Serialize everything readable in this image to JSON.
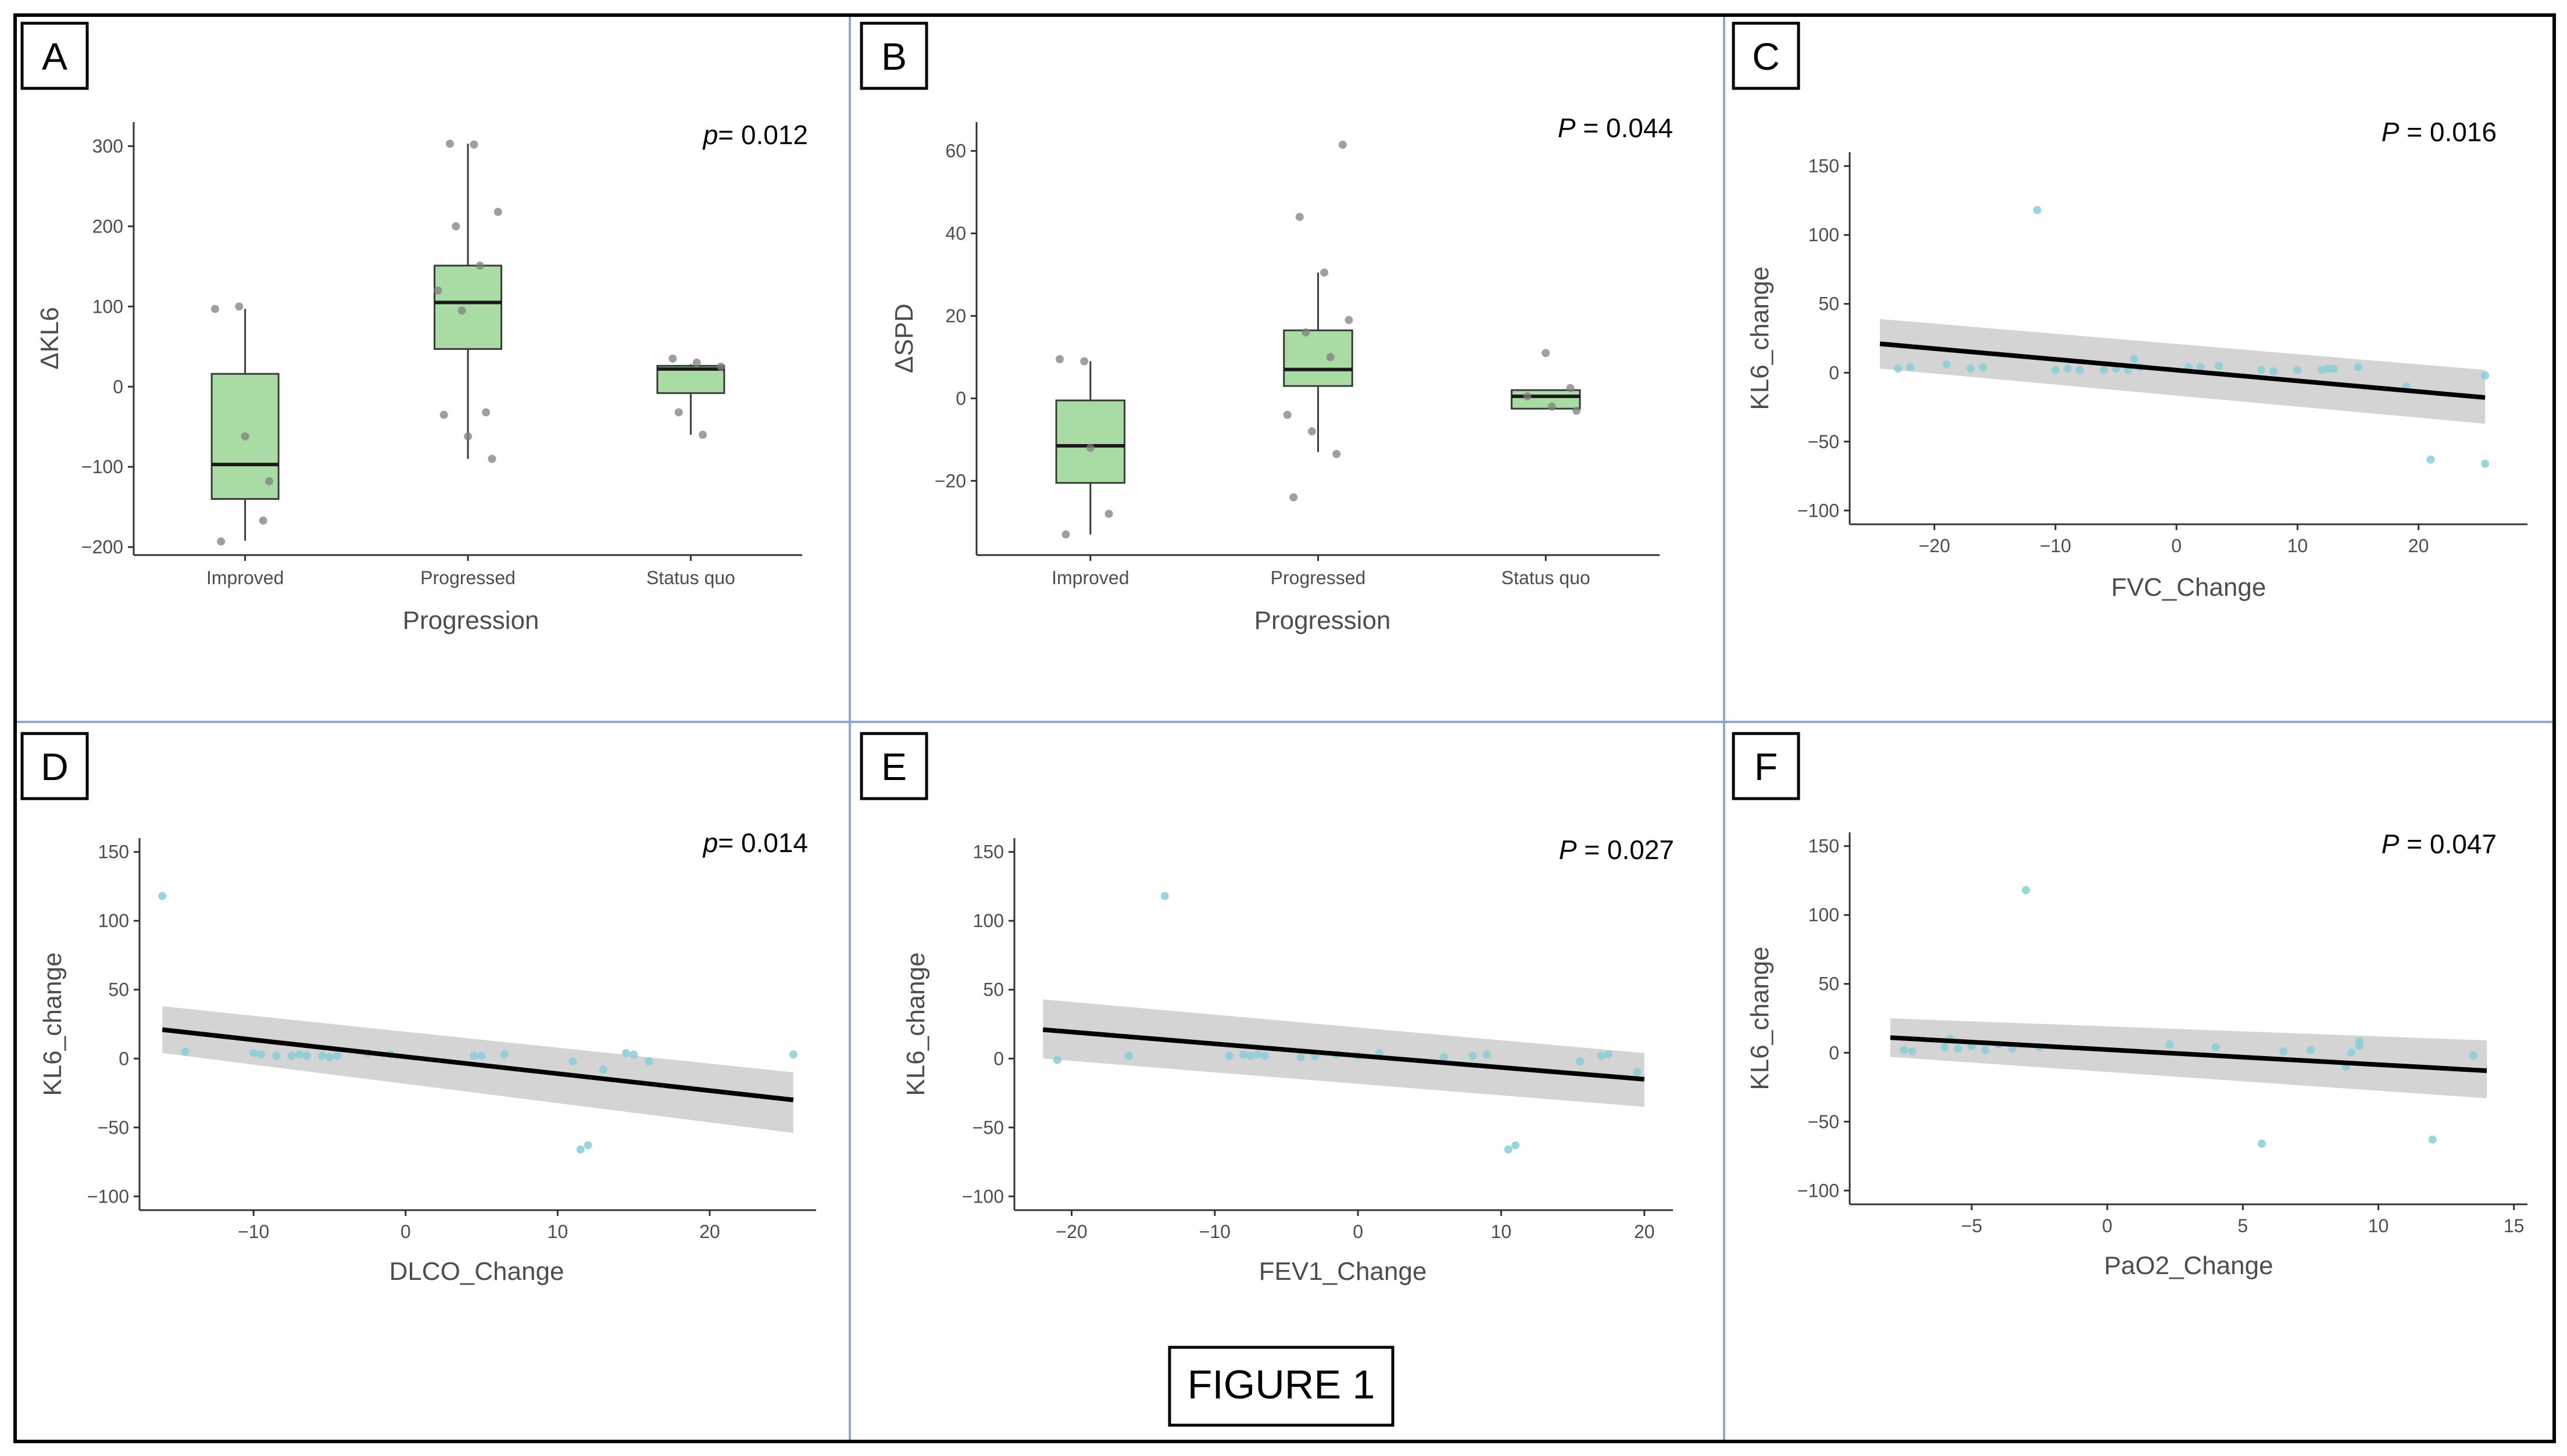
{
  "figure_caption": "FIGURE 1",
  "colors": {
    "box_fill": "#a9dba4",
    "box_stroke": "#3a3a3a",
    "jitter_point": "#7f7f7f",
    "scatter_point": "#88cdd6",
    "ribbon": "#cccccc",
    "fit_line": "#000000",
    "panel_divider": "#8ea6c8",
    "frame": "#000000"
  },
  "chart_data": [
    {
      "panel": "A",
      "type": "box",
      "pvalue_prefix": "p",
      "pvalue_rest": "= 0.012",
      "xlabel": "Progression",
      "ylabel": "ΔKL6",
      "categories": [
        "Improved",
        "Progressed",
        "Status quo"
      ],
      "ylim": [
        -210,
        330
      ],
      "yticks": [
        -200,
        -100,
        0,
        100,
        200,
        300
      ],
      "boxes": [
        {
          "category": "Improved",
          "whisker_low": -192,
          "q1": -140,
          "median": -97,
          "q3": 16,
          "whisker_high": 97
        },
        {
          "category": "Progressed",
          "whisker_low": -90,
          "q1": 47,
          "median": 105,
          "q3": 151,
          "whisker_high": 303
        },
        {
          "category": "Status quo",
          "whisker_low": -60,
          "q1": -8,
          "median": 22,
          "q3": 26,
          "whisker_high": 28
        }
      ],
      "points": [
        {
          "group": 0,
          "y": 97
        },
        {
          "group": 0,
          "y": 100
        },
        {
          "group": 0,
          "y": -167
        },
        {
          "group": 0,
          "y": -193
        },
        {
          "group": 0,
          "y": -62
        },
        {
          "group": 0,
          "y": -118
        },
        {
          "group": 1,
          "y": 303
        },
        {
          "group": 1,
          "y": 302
        },
        {
          "group": 1,
          "y": 218
        },
        {
          "group": 1,
          "y": 200
        },
        {
          "group": 1,
          "y": 151
        },
        {
          "group": 1,
          "y": 120
        },
        {
          "group": 1,
          "y": 95
        },
        {
          "group": 1,
          "y": -32
        },
        {
          "group": 1,
          "y": -35
        },
        {
          "group": 1,
          "y": -62
        },
        {
          "group": 1,
          "y": -90
        },
        {
          "group": 2,
          "y": 35
        },
        {
          "group": 2,
          "y": 30
        },
        {
          "group": 2,
          "y": 25
        },
        {
          "group": 2,
          "y": -32
        },
        {
          "group": 2,
          "y": -60
        }
      ]
    },
    {
      "panel": "B",
      "type": "box",
      "pvalue_prefix": "P",
      "pvalue_rest": " = 0.044",
      "xlabel": "Progression",
      "ylabel": "ΔSPD",
      "categories": [
        "Improved",
        "Progressed",
        "Status quo"
      ],
      "ylim": [
        -38,
        67
      ],
      "yticks": [
        -20,
        0,
        20,
        40,
        60
      ],
      "boxes": [
        {
          "category": "Improved",
          "whisker_low": -33,
          "q1": -20.5,
          "median": -11.5,
          "q3": -0.5,
          "whisker_high": 9
        },
        {
          "category": "Progressed",
          "whisker_low": -13,
          "q1": 3,
          "median": 7,
          "q3": 16.5,
          "whisker_high": 30.5
        },
        {
          "category": "Status quo",
          "whisker_low": -2.5,
          "q1": -2.5,
          "median": 0.5,
          "q3": 2,
          "whisker_high": 2
        }
      ],
      "points": [
        {
          "group": 0,
          "y": 9.5
        },
        {
          "group": 0,
          "y": 9
        },
        {
          "group": 0,
          "y": -28
        },
        {
          "group": 0,
          "y": -33
        },
        {
          "group": 0,
          "y": -12
        },
        {
          "group": 1,
          "y": 61.5
        },
        {
          "group": 1,
          "y": 44
        },
        {
          "group": 1,
          "y": 30.5
        },
        {
          "group": 1,
          "y": 19
        },
        {
          "group": 1,
          "y": 16
        },
        {
          "group": 1,
          "y": 10
        },
        {
          "group": 1,
          "y": -4
        },
        {
          "group": 1,
          "y": -8
        },
        {
          "group": 1,
          "y": -13.5
        },
        {
          "group": 1,
          "y": -24
        },
        {
          "group": 2,
          "y": 11
        },
        {
          "group": 2,
          "y": 2.5
        },
        {
          "group": 2,
          "y": 0.5
        },
        {
          "group": 2,
          "y": -2
        },
        {
          "group": 2,
          "y": -3
        }
      ]
    },
    {
      "panel": "C",
      "type": "scatter",
      "pvalue_prefix": "P",
      "pvalue_rest": " = 0.016",
      "xlabel": "FVC_Change",
      "ylabel": "KL6_change",
      "xlim": [
        -27,
        29
      ],
      "ylim": [
        -110,
        160
      ],
      "xticks": [
        -20,
        -10,
        0,
        10,
        20
      ],
      "yticks": [
        -100,
        -50,
        0,
        50,
        100,
        150
      ],
      "fit": {
        "x": [
          -24.5,
          25.5
        ],
        "y": [
          21,
          -18
        ],
        "ci_lower": [
          3,
          -37
        ],
        "ci_upper": [
          39,
          2
        ]
      },
      "points": [
        [
          -23,
          3
        ],
        [
          -22,
          4
        ],
        [
          -19,
          6
        ],
        [
          -17,
          3
        ],
        [
          -16,
          4
        ],
        [
          -11.5,
          118
        ],
        [
          -10,
          2
        ],
        [
          -9,
          3
        ],
        [
          -8,
          2
        ],
        [
          -6,
          2
        ],
        [
          -5,
          3
        ],
        [
          -4,
          2
        ],
        [
          -3.5,
          10
        ],
        [
          -3,
          4
        ],
        [
          1,
          4
        ],
        [
          2,
          4
        ],
        [
          3.5,
          5
        ],
        [
          7,
          2
        ],
        [
          8,
          1
        ],
        [
          10,
          2
        ],
        [
          12,
          2
        ],
        [
          12.5,
          3
        ],
        [
          13,
          3
        ],
        [
          15,
          4
        ],
        [
          19,
          -10
        ],
        [
          21,
          -63
        ],
        [
          25.5,
          -66
        ],
        [
          25.5,
          -2
        ]
      ]
    },
    {
      "panel": "D",
      "type": "scatter",
      "pvalue_prefix": "p",
      "pvalue_rest": "= 0.014",
      "xlabel": "DLCO_Change",
      "ylabel": "KL6_change",
      "xlim": [
        -17.5,
        27
      ],
      "ylim": [
        -110,
        160
      ],
      "xticks": [
        -10,
        0,
        10,
        20
      ],
      "yticks": [
        -100,
        -50,
        0,
        50,
        100,
        150
      ],
      "fit": {
        "x": [
          -16,
          25.5
        ],
        "y": [
          21,
          -30
        ],
        "ci_lower": [
          4,
          -54
        ],
        "ci_upper": [
          38,
          -10
        ]
      },
      "points": [
        [
          -16,
          118
        ],
        [
          -14.5,
          5
        ],
        [
          -10,
          4
        ],
        [
          -9.5,
          3
        ],
        [
          -8.5,
          2
        ],
        [
          -7.5,
          2
        ],
        [
          -7,
          3
        ],
        [
          -6.5,
          2
        ],
        [
          -5.5,
          2
        ],
        [
          -5,
          1
        ],
        [
          -4.5,
          2
        ],
        [
          -2.5,
          4
        ],
        [
          -1,
          3
        ],
        [
          4.5,
          2
        ],
        [
          5,
          2
        ],
        [
          6.5,
          3
        ],
        [
          11,
          -2
        ],
        [
          11.5,
          -66
        ],
        [
          12,
          -63
        ],
        [
          13,
          -8
        ],
        [
          14.5,
          4
        ],
        [
          15,
          3
        ],
        [
          16,
          -2
        ],
        [
          25.5,
          3
        ]
      ]
    },
    {
      "panel": "E",
      "type": "scatter",
      "pvalue_prefix": "P",
      "pvalue_rest": " = 0.027",
      "xlabel": "FEV1_Change",
      "ylabel": "KL6_change",
      "xlim": [
        -24,
        22
      ],
      "ylim": [
        -110,
        160
      ],
      "xticks": [
        -20,
        -10,
        0,
        10,
        20
      ],
      "yticks": [
        -100,
        -50,
        0,
        50,
        100,
        150
      ],
      "fit": {
        "x": [
          -22,
          20
        ],
        "y": [
          21,
          -15
        ],
        "ci_lower": [
          0,
          -35
        ],
        "ci_upper": [
          43,
          4
        ]
      },
      "points": [
        [
          -21,
          -1
        ],
        [
          -16,
          2
        ],
        [
          -13.5,
          118
        ],
        [
          -9,
          2
        ],
        [
          -8,
          3
        ],
        [
          -7.5,
          2
        ],
        [
          -7,
          3
        ],
        [
          -6.5,
          2
        ],
        [
          -4,
          1
        ],
        [
          -3,
          2
        ],
        [
          -1.5,
          3
        ],
        [
          0,
          2
        ],
        [
          1.5,
          4
        ],
        [
          6,
          1
        ],
        [
          8,
          2
        ],
        [
          9,
          3
        ],
        [
          10.5,
          -66
        ],
        [
          11,
          -63
        ],
        [
          15.5,
          -2
        ],
        [
          17,
          2
        ],
        [
          17.5,
          3
        ],
        [
          19.5,
          -10
        ]
      ]
    },
    {
      "panel": "F",
      "type": "scatter",
      "pvalue_prefix": "P",
      "pvalue_rest": " = 0.047",
      "xlabel": "PaO2_Change",
      "ylabel": "KL6_change",
      "xlim": [
        -9.5,
        15.5
      ],
      "ylim": [
        -110,
        160
      ],
      "xticks": [
        -5,
        0,
        5,
        10,
        15
      ],
      "yticks": [
        -100,
        -50,
        0,
        50,
        100,
        150
      ],
      "fit": {
        "x": [
          -8,
          14
        ],
        "y": [
          11,
          -13
        ],
        "ci_lower": [
          -3,
          -33
        ],
        "ci_upper": [
          25,
          9
        ]
      },
      "points": [
        [
          -7.5,
          2
        ],
        [
          -7.2,
          1
        ],
        [
          -6,
          4
        ],
        [
          -5.8,
          10
        ],
        [
          -5.5,
          3
        ],
        [
          -5,
          5
        ],
        [
          -4.5,
          2
        ],
        [
          -4,
          6
        ],
        [
          -3.5,
          3
        ],
        [
          -3,
          118
        ],
        [
          -2.5,
          4
        ],
        [
          2.3,
          6
        ],
        [
          4,
          4
        ],
        [
          5.7,
          -66
        ],
        [
          6.5,
          1
        ],
        [
          7.5,
          2
        ],
        [
          8.8,
          -10
        ],
        [
          9,
          0
        ],
        [
          9.3,
          8
        ],
        [
          9.3,
          5
        ],
        [
          12,
          -63
        ],
        [
          13.5,
          -2
        ]
      ]
    }
  ]
}
